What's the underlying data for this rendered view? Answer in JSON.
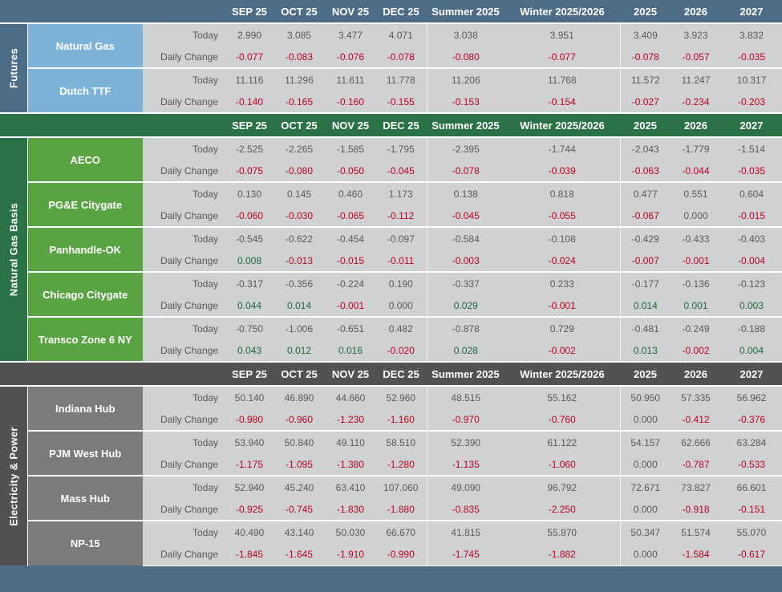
{
  "columns": [
    "SEP 25",
    "OCT 25",
    "NOV 25",
    "DEC 25",
    "Summer 2025",
    "Winter 2025/2026",
    "2025",
    "2026",
    "2027"
  ],
  "row_labels": {
    "today": "Today",
    "change": "Daily Change"
  },
  "sections": [
    {
      "title": "Futures",
      "theme": "blue",
      "show_header": true,
      "rows": [
        {
          "name": "Natural Gas",
          "today": [
            "2.990",
            "3.085",
            "3.477",
            "4.071",
            "3.038",
            "3.951",
            "3.409",
            "3.923",
            "3.832"
          ],
          "change": [
            "-0.077",
            "-0.083",
            "-0.076",
            "-0.078",
            "-0.080",
            "-0.077",
            "-0.078",
            "-0.057",
            "-0.035"
          ]
        },
        {
          "name": "Dutch TTF",
          "today": [
            "11.116",
            "11.296",
            "11.611",
            "11.778",
            "11.206",
            "11.768",
            "11.572",
            "11.247",
            "10.317"
          ],
          "change": [
            "-0.140",
            "-0.165",
            "-0.160",
            "-0.155",
            "-0.153",
            "-0.154",
            "-0.027",
            "-0.234",
            "-0.203"
          ]
        }
      ]
    },
    {
      "title": "Natural Gas Basis",
      "theme": "green",
      "show_header": true,
      "rows": [
        {
          "name": "AECO",
          "today": [
            "-2.525",
            "-2.265",
            "-1.585",
            "-1.795",
            "-2.395",
            "-1.744",
            "-2.043",
            "-1.779",
            "-1.514"
          ],
          "change": [
            "-0.075",
            "-0.080",
            "-0.050",
            "-0.045",
            "-0.078",
            "-0.039",
            "-0.063",
            "-0.044",
            "-0.035"
          ]
        },
        {
          "name": "PG&E Citygate",
          "today": [
            "0.130",
            "0.145",
            "0.460",
            "1.173",
            "0.138",
            "0.818",
            "0.477",
            "0.551",
            "0.604"
          ],
          "change": [
            "-0.060",
            "-0.030",
            "-0.065",
            "-0.112",
            "-0.045",
            "-0.055",
            "-0.067",
            "0.000",
            "-0.015"
          ]
        },
        {
          "name": "Panhandle-OK",
          "today": [
            "-0.545",
            "-0.622",
            "-0.454",
            "-0.097",
            "-0.584",
            "-0.108",
            "-0.429",
            "-0.433",
            "-0.403"
          ],
          "change": [
            "0.008",
            "-0.013",
            "-0.015",
            "-0.011",
            "-0.003",
            "-0.024",
            "-0.007",
            "-0.001",
            "-0.004"
          ]
        },
        {
          "name": "Chicago Citygate",
          "today": [
            "-0.317",
            "-0.356",
            "-0.224",
            "0.190",
            "-0.337",
            "0.233",
            "-0.177",
            "-0.136",
            "-0.123"
          ],
          "change": [
            "0.044",
            "0.014",
            "-0.001",
            "0.000",
            "0.029",
            "-0.001",
            "0.014",
            "0.001",
            "0.003"
          ]
        },
        {
          "name": "Transco Zone 6 NY",
          "today": [
            "-0.750",
            "-1.006",
            "-0.651",
            "0.482",
            "-0.878",
            "0.729",
            "-0.481",
            "-0.249",
            "-0.188"
          ],
          "change": [
            "0.043",
            "0.012",
            "0.016",
            "-0.020",
            "0.028",
            "-0.002",
            "0.013",
            "-0.002",
            "0.004"
          ]
        }
      ]
    },
    {
      "title": "Electricity & Power",
      "theme": "gray",
      "show_header": true,
      "rows": [
        {
          "name": "Indiana Hub",
          "today": [
            "50.140",
            "46.890",
            "44.660",
            "52.960",
            "48.515",
            "55.162",
            "50.950",
            "57.335",
            "56.962"
          ],
          "change": [
            "-0.980",
            "-0.960",
            "-1.230",
            "-1.160",
            "-0.970",
            "-0.760",
            "0.000",
            "-0.412",
            "-0.376"
          ]
        },
        {
          "name": "PJM West Hub",
          "today": [
            "53.940",
            "50.840",
            "49.110",
            "58.510",
            "52.390",
            "61.122",
            "54.157",
            "62.666",
            "63.284"
          ],
          "change": [
            "-1.175",
            "-1.095",
            "-1.380",
            "-1.280",
            "-1.135",
            "-1.060",
            "0.000",
            "-0.787",
            "-0.533"
          ]
        },
        {
          "name": "Mass Hub",
          "today": [
            "52.940",
            "45.240",
            "63.410",
            "107.060",
            "49.090",
            "96.792",
            "72.671",
            "73.827",
            "66.601"
          ],
          "change": [
            "-0.925",
            "-0.745",
            "-1.830",
            "-1.880",
            "-0.835",
            "-2.250",
            "0.000",
            "-0.918",
            "-0.151"
          ]
        },
        {
          "name": "NP-15",
          "today": [
            "40.490",
            "43.140",
            "50.030",
            "66.670",
            "41.815",
            "55.870",
            "50.347",
            "51.574",
            "55.070"
          ],
          "change": [
            "-1.845",
            "-1.645",
            "-1.910",
            "-0.990",
            "-1.745",
            "-1.882",
            "0.000",
            "-1.584",
            "-0.617"
          ]
        }
      ]
    }
  ]
}
